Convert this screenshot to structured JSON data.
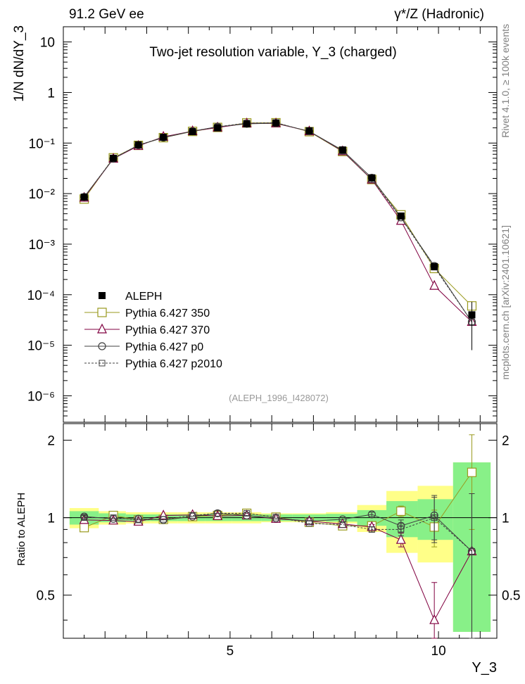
{
  "header": {
    "left": "91.2 GeV ee",
    "right": "γ*/Z (Hadronic)",
    "side_top": "Rivet 4.1.0, ≥ 100k events",
    "side_bottom": "mcplots.cern.ch [arXiv:2401.10621]"
  },
  "chart_data": {
    "type": "line",
    "title": "Two-jet resolution variable, Y_3 (charged)",
    "analysis_id": "(ALEPH_1996_I428072)",
    "ylabel": "1/N  dN/dY_3",
    "xlabel": "Y_3",
    "ratio_ylabel": "Ratio to ALEPH",
    "x": [
      1.5,
      2.2,
      2.8,
      3.4,
      4.1,
      4.7,
      5.4,
      6.1,
      6.9,
      7.7,
      8.4,
      9.1,
      9.9,
      10.8
    ],
    "xlim": [
      1.0,
      11.4
    ],
    "ylim": [
      3e-07,
      20
    ],
    "ratio_ylim": [
      0.34,
      2.32
    ],
    "x_tick_labels": [
      "5",
      "10"
    ],
    "y_tick_labels": [
      "10",
      "1",
      "10⁻¹",
      "10⁻²",
      "10⁻³",
      "10⁻⁴",
      "10⁻⁵",
      "10⁻⁶"
    ],
    "ratio_tick_labels": [
      "0.5",
      "1",
      "2"
    ],
    "data": {
      "name": "ALEPH",
      "values": [
        0.0085,
        0.05,
        0.092,
        0.13,
        0.168,
        0.2,
        0.24,
        0.25,
        0.175,
        0.073,
        0.0205,
        0.0036,
        0.00036,
        4e-05
      ],
      "errors_low": [
        0.0007,
        0.002,
        0.003,
        0.004,
        0.005,
        0.006,
        0.007,
        0.007,
        0.005,
        0.002,
        0.0007,
        0.0002,
        3e-05,
        3.2e-05
      ],
      "errors_high": [
        0.0007,
        0.002,
        0.003,
        0.004,
        0.005,
        0.006,
        0.007,
        0.007,
        0.005,
        0.002,
        0.0007,
        0.0002,
        3e-05,
        3.2e-05
      ],
      "band_yellow": [
        0.09,
        0.06,
        0.05,
        0.05,
        0.05,
        0.05,
        0.05,
        0.04,
        0.04,
        0.05,
        0.12,
        0.27,
        0.33,
        0.64
      ],
      "band_green": [
        0.06,
        0.04,
        0.03,
        0.03,
        0.03,
        0.03,
        0.03,
        0.03,
        0.03,
        0.035,
        0.07,
        0.16,
        0.18,
        0.64
      ]
    },
    "series": [
      {
        "name": "Pythia 6.427 350",
        "color": "#9a9a1e",
        "marker": "square",
        "dash": "none",
        "values": [
          0.0078,
          0.051,
          0.09,
          0.128,
          0.17,
          0.204,
          0.25,
          0.252,
          0.168,
          0.068,
          0.019,
          0.0038,
          0.00033,
          6e-05
        ],
        "ratio": [
          0.915,
          1.02,
          0.98,
          0.985,
          1.01,
          1.02,
          1.04,
          1.005,
          0.96,
          0.93,
          0.93,
          1.06,
          0.92,
          1.5
        ],
        "ratio_err": [
          0.03,
          0.01,
          0.01,
          0.01,
          0.01,
          0.01,
          0.01,
          0.01,
          0.01,
          0.01,
          0.02,
          0.05,
          0.15,
          0.6
        ]
      },
      {
        "name": "Pythia 6.427 370",
        "color": "#800040",
        "marker": "triangle",
        "dash": "none",
        "values": [
          0.0083,
          0.049,
          0.088,
          0.133,
          0.172,
          0.203,
          0.245,
          0.245,
          0.171,
          0.069,
          0.019,
          0.0029,
          0.00015,
          2.9e-05
        ],
        "ratio": [
          0.98,
          0.975,
          0.965,
          1.02,
          1.025,
          1.015,
          1.02,
          0.99,
          0.97,
          0.945,
          0.92,
          0.82,
          0.4,
          0.74
        ],
        "ratio_err": [
          0.02,
          0.01,
          0.01,
          0.01,
          0.01,
          0.01,
          0.01,
          0.01,
          0.01,
          0.01,
          0.02,
          0.05,
          0.16,
          0.5
        ]
      },
      {
        "name": "Pythia 6.427 p0",
        "color": "#404040",
        "marker": "circle",
        "dash": "none",
        "values": [
          0.0086,
          0.049,
          0.091,
          0.128,
          0.171,
          0.21,
          0.24,
          0.248,
          0.171,
          0.072,
          0.0205,
          0.0034,
          0.00037,
          2.9e-05
        ],
        "ratio": [
          1.01,
          0.99,
          0.99,
          0.98,
          1.01,
          1.04,
          1.02,
          0.995,
          0.97,
          0.985,
          1.03,
          0.93,
          1.02,
          0.74
        ],
        "ratio_err": [
          0.02,
          0.01,
          0.01,
          0.01,
          0.01,
          0.01,
          0.01,
          0.01,
          0.01,
          0.01,
          0.02,
          0.05,
          0.2,
          0.5
        ]
      },
      {
        "name": "Pythia 6.427 p2010",
        "color": "#404040",
        "marker": "square-small",
        "dash": "dashed",
        "values": [
          0.0085,
          0.05,
          0.091,
          0.13,
          0.172,
          0.21,
          0.248,
          0.252,
          0.17,
          0.069,
          0.019,
          0.0033,
          0.00035,
          2.9e-05
        ],
        "ratio": [
          1.0,
          1.0,
          0.98,
          0.985,
          1.02,
          1.04,
          1.04,
          1.005,
          0.95,
          0.94,
          0.9,
          0.9,
          1.0,
          0.74
        ],
        "ratio_err": [
          0.02,
          0.01,
          0.01,
          0.01,
          0.01,
          0.01,
          0.01,
          0.01,
          0.01,
          0.01,
          0.02,
          0.05,
          0.2,
          0.5
        ]
      }
    ]
  }
}
